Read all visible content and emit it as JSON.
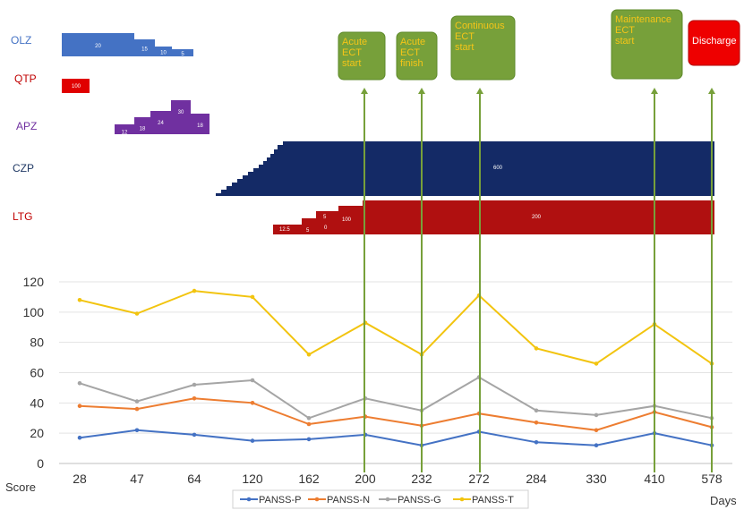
{
  "chart_data": {
    "type": "line",
    "x_axis_title": "Days",
    "y_axis_title": "Score",
    "x_ticks": [
      "28",
      "47",
      "64",
      "120",
      "162",
      "200",
      "232",
      "272",
      "284",
      "330",
      "410",
      "578"
    ],
    "y_ticks": [
      0,
      20,
      40,
      60,
      80,
      100,
      120
    ],
    "ylim": [
      0,
      120
    ],
    "grid": "horizontal",
    "legend_position": "bottom",
    "series": [
      {
        "name": "PANSS-P",
        "color": "#4472c4",
        "values": [
          17,
          22,
          19,
          15,
          16,
          19,
          12,
          21,
          14,
          12,
          20,
          12
        ]
      },
      {
        "name": "PANSS-N",
        "color": "#ed7d31",
        "values": [
          38,
          36,
          43,
          40,
          26,
          31,
          25,
          33,
          27,
          22,
          34,
          24
        ]
      },
      {
        "name": "PANSS-G",
        "color": "#a5a5a5",
        "values": [
          53,
          41,
          52,
          55,
          30,
          43,
          35,
          57,
          35,
          32,
          38,
          30
        ]
      },
      {
        "name": "PANSS-T",
        "color": "#f2c40f",
        "values": [
          108,
          99,
          114,
          110,
          72,
          93,
          72,
          111,
          76,
          66,
          92,
          66
        ]
      }
    ],
    "medications": [
      {
        "name": "OLZ",
        "label_color": "#4472c4",
        "bar_color": "#4472c4",
        "doses": [
          "20",
          "15",
          "10",
          "5"
        ]
      },
      {
        "name": "QTP",
        "label_color": "#c00000",
        "bar_color": "#e00000",
        "doses": [
          "100"
        ]
      },
      {
        "name": "APZ",
        "label_color": "#7030a0",
        "bar_color": "#7030a0",
        "doses": [
          "12",
          "18",
          "24",
          "30",
          "18"
        ]
      },
      {
        "name": "CZP",
        "label_color": "#1f3864",
        "bar_color": "#142a66",
        "doses": [
          "600"
        ]
      },
      {
        "name": "LTG",
        "label_color": "#c00000",
        "bar_color": "#b01010",
        "doses": [
          "12.5",
          "5",
          "5",
          "0",
          "100",
          "200"
        ]
      }
    ],
    "events": [
      {
        "lines": [
          "Acute",
          "ECT",
          "start"
        ],
        "x_index": 5
      },
      {
        "lines": [
          "Acute",
          "ECT",
          "finish"
        ],
        "x_index": 6
      },
      {
        "lines": [
          "Continuous",
          "ECT",
          "start"
        ],
        "x_index": 7
      },
      {
        "lines": [
          "Maintenance",
          "ECT",
          "start"
        ],
        "x_index": 10
      },
      {
        "lines": [
          "Discharge"
        ],
        "x_index": 11,
        "red": true
      }
    ]
  }
}
